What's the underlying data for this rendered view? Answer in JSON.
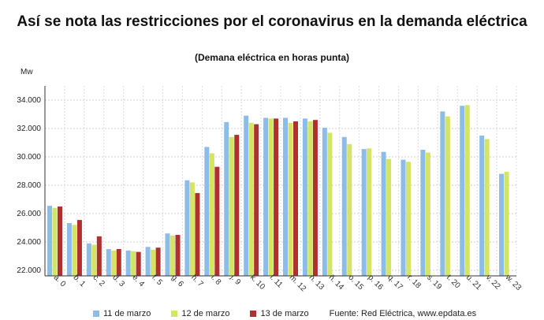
{
  "chart_data": {
    "type": "bar",
    "title": "Así se nota las restricciones por el coronavirus en la demanda eléctrica",
    "subtitle": "(Demana eléctrica en horas punta)",
    "ylabel": "Mw",
    "xlabel": "",
    "ylim": [
      22000,
      35000
    ],
    "yticks": [
      22000,
      24000,
      26000,
      28000,
      30000,
      32000,
      34000
    ],
    "ytick_labels": [
      "22.000",
      "24.000",
      "26.000",
      "28.000",
      "30.000",
      "32.000",
      "34.000"
    ],
    "grid": true,
    "legend_position": "bottom",
    "categories": [
      "a. 0",
      "b. 1",
      "c. 2",
      "d. 3",
      "e. 4",
      "f. 5",
      "g. 6",
      "h. 7",
      "i. 8",
      "j. 9",
      "k. 10",
      "l. 11",
      "m. 12",
      "n. 13",
      "ñ. 14",
      "o. 15",
      "p. 16",
      "q. 17",
      "r. 18",
      "s. 19",
      "t. 20",
      "u. 21",
      "v. 22",
      "w. 23"
    ],
    "series": [
      {
        "name": "11 de marzo",
        "color": "#8bbde8",
        "values": [
          26550,
          25330,
          23900,
          23500,
          23400,
          23650,
          24600,
          28350,
          30700,
          32450,
          32900,
          32750,
          32750,
          32700,
          32050,
          31400,
          30550,
          30350,
          29800,
          30500,
          33200,
          33600,
          31500,
          28800
        ]
      },
      {
        "name": "12 de marzo",
        "color": "#d4e465",
        "values": [
          26400,
          25200,
          23800,
          23400,
          23350,
          23450,
          24450,
          28200,
          30250,
          31400,
          32400,
          32700,
          32400,
          32500,
          31700,
          30900,
          30600,
          29850,
          29650,
          30300,
          32850,
          33650,
          31250,
          28950
        ]
      },
      {
        "name": "13 de marzo",
        "color": "#b03030",
        "values": [
          26500,
          25550,
          24400,
          23500,
          23300,
          23600,
          24500,
          27450,
          29300,
          31550,
          32300,
          32700,
          32500,
          32600,
          null,
          null,
          null,
          null,
          null,
          null,
          null,
          null,
          null,
          null
        ]
      }
    ],
    "source": "Fuente: Red Eléctrica, www.epdata.es"
  }
}
